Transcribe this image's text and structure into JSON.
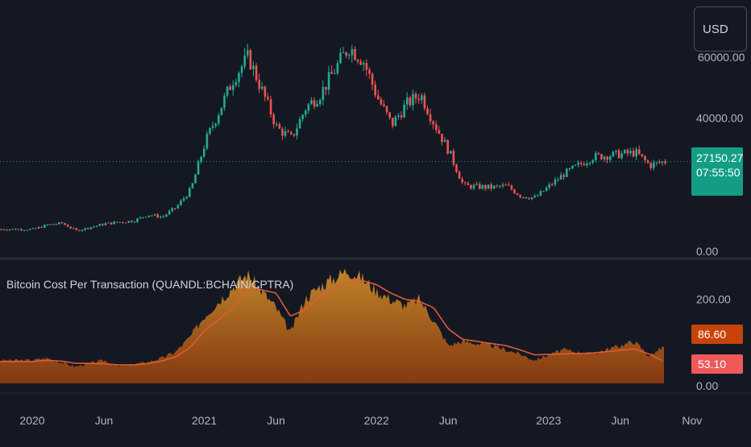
{
  "currency_label": "USD",
  "price_badge": {
    "price": "27150.27",
    "countdown": "07:55:50",
    "color": "#139d84"
  },
  "indicator": {
    "title": "Bitcoin Cost Per Transaction (QUANDL:BCHAIN/CPTRA)",
    "value_badge_1": "86.60",
    "value_badge_1_color": "#c6440b",
    "value_badge_2": "53.10",
    "value_badge_2_color": "#ee5a5a"
  },
  "colors": {
    "background": "#141823",
    "up": "#22ab94",
    "down": "#f05350",
    "area_fill": "#c67a1c",
    "ma_line": "#e05a3a",
    "price_line": "#139d84"
  },
  "chart_data": [
    {
      "type": "line",
      "title": "",
      "series": [
        {
          "values": [
            7200,
            8500,
            9000,
            6800,
            8800,
            9300,
            9700,
            11500,
            10800,
            13800,
            19000,
            33000,
            52000,
            58000,
            37000,
            34000,
            43000,
            47000,
            61000,
            57000,
            46000,
            38000,
            44000,
            47000,
            38000,
            30000,
            20000,
            19500,
            20000,
            17000,
            16500,
            23500,
            28500,
            29800,
            26000,
            27150
          ]
        }
      ],
      "x": [
        "2020-01",
        "2020-02",
        "2020-03",
        "2020-04",
        "2020-06",
        "2020-07",
        "2020-08",
        "2020-09",
        "2020-10",
        "2020-11",
        "2020-12",
        "2021-01",
        "2021-03",
        "2021-04",
        "2021-06",
        "2021-07",
        "2021-08",
        "2021-09",
        "2021-11",
        "2021-12",
        "2022-01",
        "2022-02",
        "2022-03",
        "2022-04",
        "2022-05",
        "2022-06",
        "2022-07",
        "2022-09",
        "2022-10",
        "2022-11",
        "2022-12",
        "2023-02",
        "2023-04",
        "2023-07",
        "2023-08",
        "2023-09"
      ],
      "y_ticks": [
        "40000.00",
        "0.00"
      ],
      "y_partial_tick": "60000.00",
      "x_ticks": [
        "2020",
        "Jun",
        "2021",
        "Jun",
        "2022",
        "Jun",
        "2023",
        "Jun",
        "Nov"
      ],
      "ylim": [
        0,
        70000
      ],
      "grid": false
    },
    {
      "type": "area",
      "title": "Bitcoin Cost Per Transaction (QUANDL:BCHAIN/CPTRA)",
      "series": [
        {
          "values": [
            55,
            60,
            50,
            40,
            55,
            40,
            45,
            50,
            60,
            75,
            110,
            160,
            230,
            260,
            180,
            120,
            200,
            230,
            270,
            250,
            220,
            200,
            185,
            200,
            150,
            90,
            100,
            90,
            80,
            70,
            55,
            80,
            70,
            100,
            65,
            86.6
          ]
        },
        {
          "values": [
            52,
            55,
            53,
            48,
            47,
            44,
            44,
            47,
            53,
            63,
            85,
            125,
            180,
            230,
            215,
            160,
            175,
            205,
            240,
            245,
            235,
            215,
            200,
            195,
            180,
            130,
            105,
            95,
            90,
            80,
            68,
            70,
            72,
            82,
            70,
            53.1
          ]
        }
      ],
      "y_ticks": [
        "200.00",
        "0.00"
      ],
      "ylim": [
        0,
        280
      ]
    }
  ]
}
